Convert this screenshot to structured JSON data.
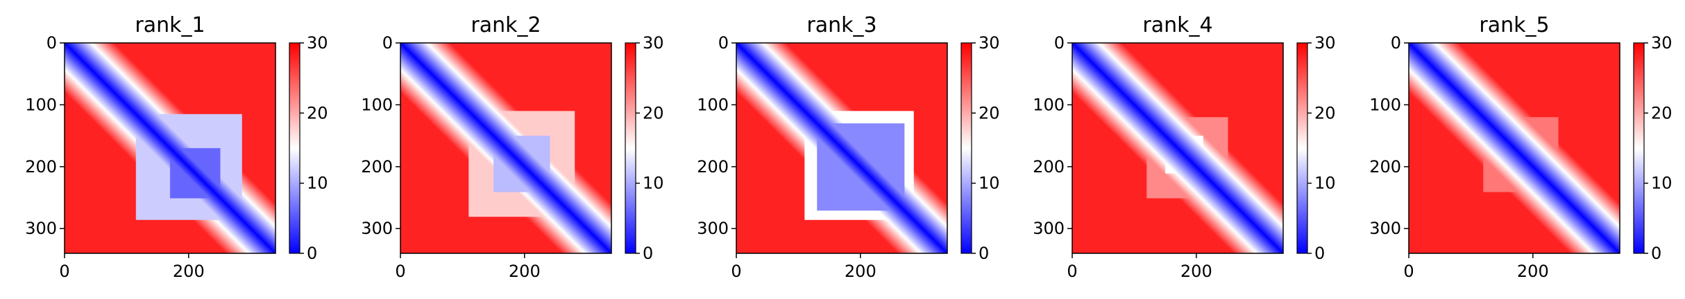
{
  "chart_data": [
    {
      "type": "heatmap",
      "title": "rank_1",
      "matrix_size": 340,
      "cmap": [
        "#0000ff",
        "#ffffff",
        "#ff0000"
      ],
      "clim": [
        0,
        30
      ],
      "xlim": [
        0,
        340
      ],
      "ylim": [
        340,
        0
      ],
      "xticks": [
        0,
        200
      ],
      "yticks": [
        0,
        100,
        200,
        300
      ],
      "colorbar_ticks": [
        0,
        10,
        20,
        30
      ],
      "diagonal_value": 0,
      "background_value": 28,
      "domain": {
        "start": 115,
        "end": 285,
        "value": 12
      },
      "core": {
        "start": 170,
        "end": 250,
        "value": 6
      }
    },
    {
      "type": "heatmap",
      "title": "rank_2",
      "matrix_size": 340,
      "cmap": [
        "#0000ff",
        "#ffffff",
        "#ff0000"
      ],
      "clim": [
        0,
        30
      ],
      "xlim": [
        0,
        340
      ],
      "ylim": [
        340,
        0
      ],
      "xticks": [
        0,
        200
      ],
      "yticks": [
        0,
        100,
        200,
        300
      ],
      "colorbar_ticks": [
        0,
        10,
        20,
        30
      ],
      "diagonal_value": 0,
      "background_value": 28,
      "domain": {
        "start": 110,
        "end": 280,
        "value": 18
      },
      "core": {
        "start": 150,
        "end": 240,
        "value": 11
      }
    },
    {
      "type": "heatmap",
      "title": "rank_3",
      "matrix_size": 340,
      "cmap": [
        "#0000ff",
        "#ffffff",
        "#ff0000"
      ],
      "clim": [
        0,
        30
      ],
      "xlim": [
        0,
        340
      ],
      "ylim": [
        340,
        0
      ],
      "xticks": [
        0,
        200
      ],
      "yticks": [
        0,
        100,
        200,
        300
      ],
      "colorbar_ticks": [
        0,
        10,
        20,
        30
      ],
      "diagonal_value": 0,
      "background_value": 28,
      "domain": {
        "start": 110,
        "end": 285,
        "value": 15
      },
      "core": {
        "start": 130,
        "end": 270,
        "value": 8
      }
    },
    {
      "type": "heatmap",
      "title": "rank_4",
      "matrix_size": 340,
      "cmap": [
        "#0000ff",
        "#ffffff",
        "#ff0000"
      ],
      "clim": [
        0,
        30
      ],
      "xlim": [
        0,
        340
      ],
      "ylim": [
        340,
        0
      ],
      "xticks": [
        0,
        200
      ],
      "yticks": [
        0,
        100,
        200,
        300
      ],
      "colorbar_ticks": [
        0,
        10,
        20,
        30
      ],
      "diagonal_value": 0,
      "background_value": 28,
      "domain": {
        "start": 120,
        "end": 250,
        "value": 22
      },
      "core": {
        "start": 150,
        "end": 210,
        "value": 15
      }
    },
    {
      "type": "heatmap",
      "title": "rank_5",
      "matrix_size": 340,
      "cmap": [
        "#0000ff",
        "#ffffff",
        "#ff0000"
      ],
      "clim": [
        0,
        30
      ],
      "xlim": [
        0,
        340
      ],
      "ylim": [
        340,
        0
      ],
      "xticks": [
        0,
        200
      ],
      "yticks": [
        0,
        100,
        200,
        300
      ],
      "colorbar_ticks": [
        0,
        10,
        20,
        30
      ],
      "diagonal_value": 0,
      "background_value": 28,
      "domain": {
        "start": 120,
        "end": 240,
        "value": 23
      },
      "core": {
        "start": 160,
        "end": 210,
        "value": 17
      }
    }
  ]
}
